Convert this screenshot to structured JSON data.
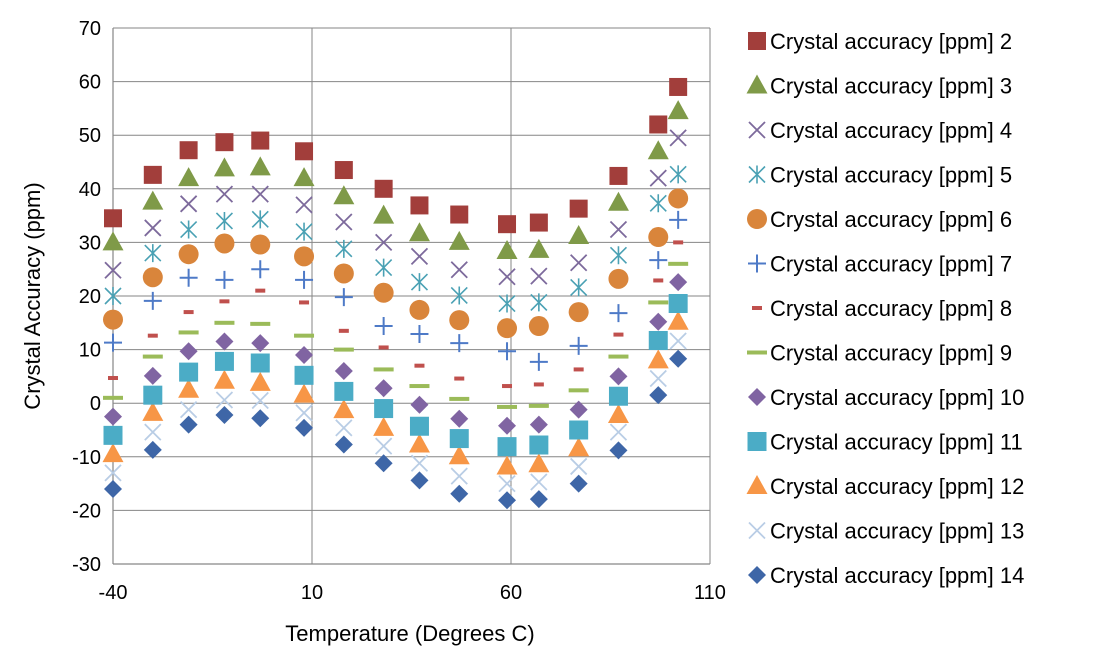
{
  "chart_data": {
    "type": "scatter",
    "title": "",
    "xlabel": "Temperature (Degrees C)",
    "ylabel": "Crystal Accuracy (ppm)",
    "xlim": [
      -40,
      110
    ],
    "ylim": [
      -30,
      70
    ],
    "x_ticks": [
      -40,
      10,
      60,
      110
    ],
    "y_ticks": [
      -30,
      -20,
      -10,
      0,
      10,
      20,
      30,
      40,
      50,
      60,
      70
    ],
    "x_tick_labels": [
      "-40",
      "10",
      "60",
      "110"
    ],
    "y_tick_labels": [
      "-30",
      "-20",
      "-10",
      "0",
      "10",
      "20",
      "30",
      "40",
      "50",
      "60",
      "70"
    ],
    "grid": true,
    "legend_position": "right",
    "x": [
      -40,
      -30,
      -21,
      -12,
      -3,
      8,
      18,
      28,
      37,
      47,
      59,
      67,
      77,
      87,
      97,
      102
    ],
    "series": [
      {
        "name": "Crystal accuracy [ppm] 2",
        "marker": "square",
        "color": "#a23e3b",
        "x": [
          -40,
          -30,
          -21,
          -12,
          -3,
          8,
          18,
          28,
          37,
          47,
          59,
          67,
          77,
          87,
          97,
          102
        ],
        "values": [
          34.5,
          42.6,
          47.2,
          48.7,
          49.0,
          47.0,
          43.5,
          40.0,
          36.9,
          35.2,
          33.4,
          33.7,
          36.3,
          42.4,
          52.0,
          59.0
        ]
      },
      {
        "name": "Crystal accuracy [ppm] 3",
        "marker": "triangle",
        "color": "#7f9a48",
        "x": [
          -40,
          -30,
          -21,
          -12,
          -3,
          8,
          18,
          28,
          37,
          47,
          59,
          67,
          77,
          87,
          97,
          102
        ],
        "values": [
          30.0,
          37.6,
          42.0,
          43.8,
          44.0,
          42.0,
          38.6,
          35.0,
          31.7,
          30.1,
          28.4,
          28.6,
          31.2,
          37.4,
          47.0,
          54.5
        ]
      },
      {
        "name": "Crystal accuracy [ppm] 4",
        "marker": "x",
        "color": "#7d6a9c",
        "x": [
          -40,
          -30,
          -21,
          -12,
          -3,
          8,
          18,
          28,
          37,
          47,
          59,
          67,
          77,
          87,
          97,
          102
        ],
        "values": [
          24.8,
          32.7,
          37.2,
          39.0,
          39.0,
          37.0,
          33.8,
          30.0,
          27.4,
          24.9,
          23.6,
          23.7,
          26.2,
          32.4,
          42.0,
          49.5
        ]
      },
      {
        "name": "Crystal accuracy [ppm] 5",
        "marker": "asterisk",
        "color": "#4aa1b4",
        "x": [
          -40,
          -30,
          -21,
          -12,
          -3,
          8,
          18,
          28,
          37,
          47,
          59,
          67,
          77,
          87,
          97,
          102
        ],
        "values": [
          20.0,
          28.0,
          32.4,
          34.0,
          34.3,
          32.0,
          28.8,
          25.3,
          22.6,
          20.1,
          18.6,
          18.8,
          21.6,
          27.6,
          37.3,
          42.7
        ]
      },
      {
        "name": "Crystal accuracy [ppm] 6",
        "marker": "circle",
        "color": "#d9853b",
        "x": [
          -40,
          -30,
          -21,
          -12,
          -3,
          8,
          18,
          28,
          37,
          47,
          59,
          67,
          77,
          87,
          97,
          102
        ],
        "values": [
          15.6,
          23.5,
          27.8,
          29.8,
          29.6,
          27.4,
          24.2,
          20.6,
          17.4,
          15.5,
          14.0,
          14.4,
          17.0,
          23.2,
          31.0,
          38.2
        ]
      },
      {
        "name": "Crystal accuracy [ppm] 7",
        "marker": "plus",
        "color": "#4e7ac7",
        "x": [
          -40,
          -30,
          -21,
          -12,
          -3,
          8,
          18,
          28,
          37,
          47,
          59,
          67,
          77,
          87,
          97,
          102
        ],
        "values": [
          11.3,
          19.1,
          23.4,
          23.0,
          25.0,
          23.0,
          19.8,
          14.4,
          12.9,
          11.2,
          9.7,
          7.7,
          10.7,
          16.8,
          26.7,
          34.2
        ]
      },
      {
        "name": "Crystal accuracy [ppm] 8",
        "marker": "dash",
        "color": "#c0504d",
        "x": [
          -40,
          -30,
          -21,
          -12,
          -3,
          8,
          18,
          28,
          37,
          47,
          59,
          67,
          77,
          87,
          97,
          102
        ],
        "values": [
          4.7,
          12.6,
          17.0,
          19.0,
          21.0,
          18.8,
          13.5,
          10.4,
          7.0,
          4.6,
          3.2,
          3.5,
          6.3,
          12.8,
          22.9,
          30.0
        ]
      },
      {
        "name": "Crystal accuracy [ppm] 9",
        "marker": "longdash",
        "color": "#9bbb59",
        "x": [
          -40,
          -30,
          -21,
          -12,
          -3,
          8,
          18,
          28,
          37,
          47,
          59,
          67,
          77,
          87,
          97,
          102
        ],
        "values": [
          1.0,
          8.7,
          13.2,
          15.0,
          14.8,
          12.6,
          10.0,
          6.3,
          3.2,
          0.8,
          -0.7,
          -0.5,
          2.4,
          8.7,
          18.8,
          26.0
        ]
      },
      {
        "name": "Crystal accuracy [ppm] 10",
        "marker": "diamond",
        "color": "#8064a2",
        "x": [
          -40,
          -30,
          -21,
          -12,
          -3,
          8,
          18,
          28,
          37,
          47,
          59,
          67,
          77,
          87,
          97,
          102
        ],
        "values": [
          -2.5,
          5.1,
          9.7,
          11.5,
          11.2,
          9.0,
          6.0,
          2.8,
          -0.3,
          -2.9,
          -4.2,
          -4.0,
          -1.2,
          5.0,
          15.2,
          22.6
        ]
      },
      {
        "name": "Crystal accuracy [ppm] 11",
        "marker": "bigsquare",
        "color": "#4bacc6",
        "x": [
          -40,
          -30,
          -21,
          -12,
          -3,
          8,
          18,
          28,
          37,
          47,
          59,
          67,
          77,
          87,
          97,
          102
        ],
        "values": [
          -6.0,
          1.5,
          5.8,
          7.8,
          7.5,
          5.2,
          2.2,
          -1.0,
          -4.3,
          -6.6,
          -8.1,
          -7.8,
          -5.0,
          1.3,
          11.7,
          18.6
        ]
      },
      {
        "name": "Crystal accuracy [ppm] 12",
        "marker": "triangle",
        "color": "#f79646",
        "x": [
          -40,
          -30,
          -21,
          -12,
          -3,
          8,
          18,
          28,
          37,
          47,
          59,
          67,
          77,
          87,
          97,
          102
        ],
        "values": [
          -9.5,
          -1.8,
          2.5,
          4.2,
          3.8,
          1.6,
          -1.3,
          -4.6,
          -7.7,
          -9.9,
          -11.8,
          -11.4,
          -8.4,
          -2.2,
          8.0,
          15.2
        ]
      },
      {
        "name": "Crystal accuracy [ppm] 13",
        "marker": "x",
        "color": "#b9cde5",
        "x": [
          -40,
          -30,
          -21,
          -12,
          -3,
          8,
          18,
          28,
          37,
          47,
          59,
          67,
          77,
          87,
          97,
          102
        ],
        "values": [
          -13.0,
          -5.4,
          -1.2,
          0.6,
          0.5,
          -1.8,
          -4.6,
          -8.0,
          -11.2,
          -13.6,
          -15.0,
          -14.7,
          -11.8,
          -5.4,
          4.6,
          11.6
        ]
      },
      {
        "name": "Crystal accuracy [ppm] 14",
        "marker": "diamond",
        "color": "#3e66a7",
        "x": [
          -40,
          -30,
          -21,
          -12,
          -3,
          8,
          18,
          28,
          37,
          47,
          59,
          67,
          77,
          87,
          97,
          102
        ],
        "values": [
          -16.0,
          -8.7,
          -4.0,
          -2.2,
          -2.8,
          -4.6,
          -7.7,
          -11.2,
          -14.4,
          -16.9,
          -18.1,
          -17.9,
          -15.0,
          -8.8,
          1.5,
          8.3
        ]
      }
    ]
  }
}
